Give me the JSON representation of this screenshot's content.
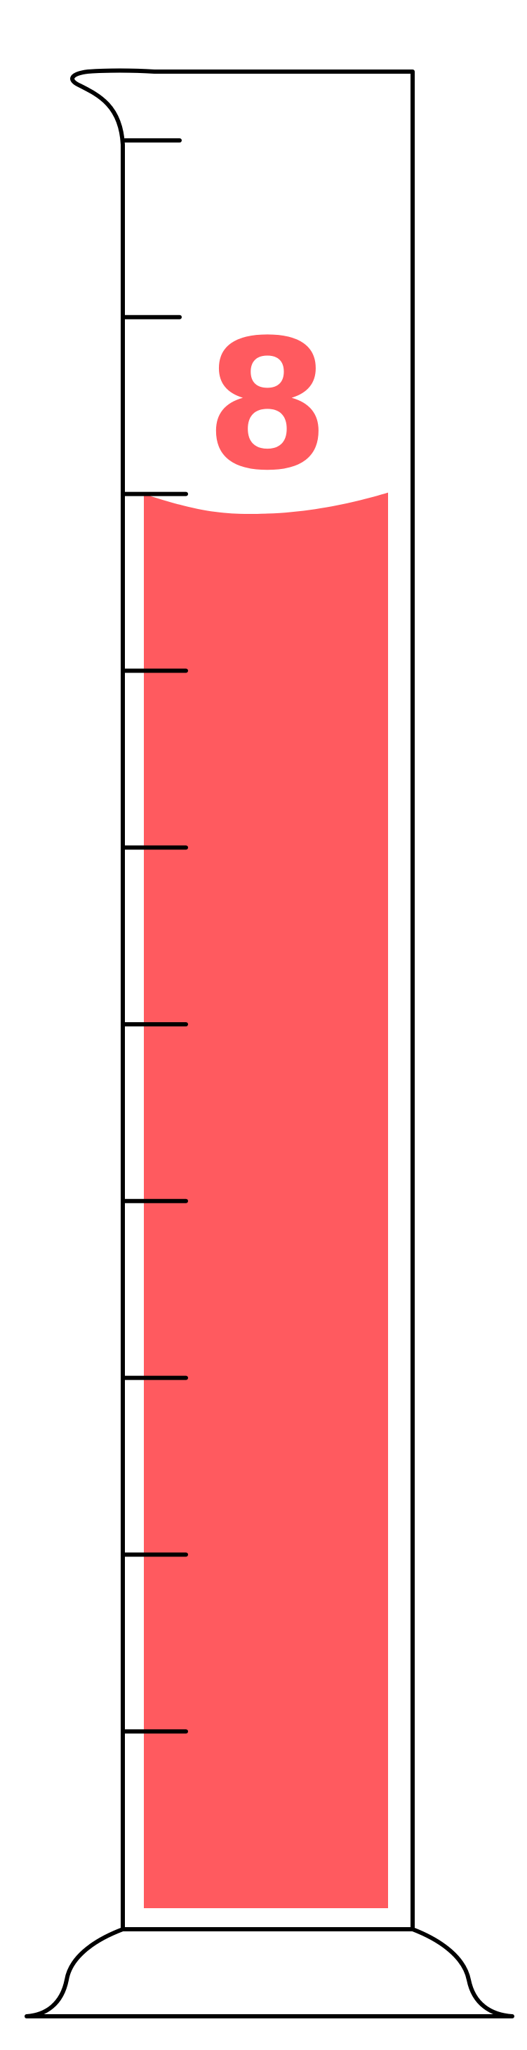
{
  "cylinder": {
    "reading": "8",
    "liquid_level": 8,
    "scale_max": 10,
    "tick_count": 10,
    "liquid_color": "#ff5a5f",
    "outline_color": "#000000"
  }
}
